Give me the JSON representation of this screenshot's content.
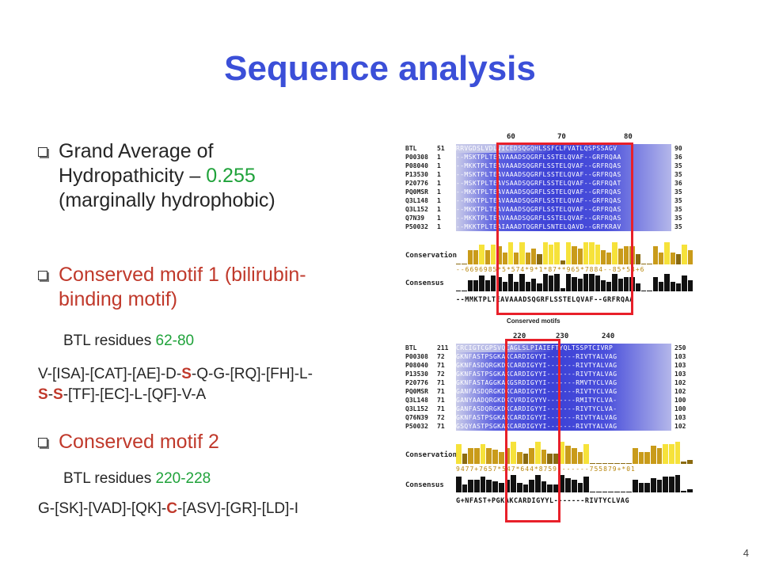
{
  "title": "Sequence analysis",
  "bullets": {
    "b1_line1": "Grand Average of",
    "b1_line2_a": "Hydropathicity – ",
    "b1_line2_b": "0.255",
    "b1_line3": "(marginally hydrophobic)",
    "b2_line1": "Conserved motif 1 (bilirubin-",
    "b2_line2": "binding motif)",
    "b2_res_a": "BTL residues ",
    "b2_res_b": "62-80",
    "b2_motif_l1_a": "V-[ISA]-[CAT]-[AE]-D-",
    "b2_motif_l1_s": "S",
    "b2_motif_l1_b": "-Q-G-[RQ]-[FH]-L-",
    "b2_motif_l2_s1": "S",
    "b2_motif_l2_dash": "-",
    "b2_motif_l2_s2": "S",
    "b2_motif_l2_b": "-[TF]-[EC]-L-[QF]-V-A",
    "b3_line1": "Conserved motif 2",
    "b3_res_a": "BTL residues ",
    "b3_res_b": "220-228",
    "b3_motif_a": "G-[SK]-[VAD]-[QK]-",
    "b3_motif_c": "C",
    "b3_motif_b": "-[ASV]-[GR]-[LD]-I"
  },
  "figure": {
    "top": {
      "ruler": [
        "60",
        "70",
        "80"
      ],
      "rows": [
        {
          "name": "BTL",
          "pos": "51",
          "seq": "RRVGDSLVDLVICEDSQGQHLSSFCLFVATLQSPSSAGV",
          "end": "90"
        },
        {
          "name": "P00308",
          "pos": "1",
          "seq": "--MSKTPLTEAVAAADSQGRFLSSTELQVAF--GRFRQAA",
          "end": "36"
        },
        {
          "name": "P08040",
          "pos": "1",
          "seq": "--MKKTPLTEAVAAADSQGRFLSSTELQVAF--GRFRQAS",
          "end": "35"
        },
        {
          "name": "P13530",
          "pos": "1",
          "seq": "--MSKTPLTEAVAAADSQGRFLSSTELQVAF--GRFRQAS",
          "end": "35"
        },
        {
          "name": "P20776",
          "pos": "1",
          "seq": "--MSKTPLTEAVSAADSQGRFLSSTELQVAF--GRFRQAT",
          "end": "36"
        },
        {
          "name": "PQ0MSR",
          "pos": "1",
          "seq": "--MKKTPLTEAVAAADSQGRFLSSTELQVAF--GRFRQAS",
          "end": "35"
        },
        {
          "name": "Q3L148",
          "pos": "1",
          "seq": "--MKKTPLTEAVAAADSQGRFLSSTELQVAF--GRFRQAS",
          "end": "35"
        },
        {
          "name": "Q3L152",
          "pos": "1",
          "seq": "--MKKTPLTEAVAAADSQGRFLSSTELQVAF--GRFRQAS",
          "end": "35"
        },
        {
          "name": "Q7N39",
          "pos": "1",
          "seq": "--MKKTPLTEAVAAADSQGRFLSSTELQVAF--GRFRQAS",
          "end": "35"
        },
        {
          "name": "P50032",
          "pos": "1",
          "seq": "--MKKTPLTEAIAAADTQGRFLSNTELQAVD--GRFKRAV",
          "end": "35"
        }
      ],
      "conservation_label": "Conservation",
      "scores": "--6696985*5*574*9*1*87**965*7884--85*54+6",
      "consensus_label": "Consensus",
      "consensus": "--MMKTPLTEAVAAADSQGRFLSSTELQVAF--GRFRQAA"
    },
    "callout": "Conserved motifs",
    "bottom": {
      "ruler": [
        "220",
        "230",
        "240"
      ],
      "rows": [
        {
          "name": "BTL",
          "pos": "211",
          "seq": "CRCIGTCGPSVQCAGLSLPIAIEFTYQLTSSPTCIVRP",
          "end": "250"
        },
        {
          "name": "P00308",
          "pos": "72",
          "seq": "GKNFASTPSGKAKCARDIGYYI-------RIVTYALVAG",
          "end": "103"
        },
        {
          "name": "P08040",
          "pos": "71",
          "seq": "GKNFASDQRGKDKCARDIGYYI-------RIVTYALVAG",
          "end": "103"
        },
        {
          "name": "P13530",
          "pos": "72",
          "seq": "GKNFASTPSGKAKCARDIGYYI-------RIVTYALVAG",
          "end": "103"
        },
        {
          "name": "P20776",
          "pos": "71",
          "seq": "GKNFASTAGGKAKGSRDIGYYI-------RMVTYCLVAG",
          "end": "102"
        },
        {
          "name": "PQ0MSR",
          "pos": "71",
          "seq": "GANFASDQRGKDKCARDIGYYI-------RIVTYCLVAG",
          "end": "102"
        },
        {
          "name": "Q3L148",
          "pos": "71",
          "seq": "GANYAADQRGKDKCVRDIGYYV-------RMITYCLVA-",
          "end": "100"
        },
        {
          "name": "Q3L152",
          "pos": "71",
          "seq": "GANFASDQRGKDKCARDIGYYI-------RIVTYCLVA-",
          "end": "100"
        },
        {
          "name": "Q76N39",
          "pos": "72",
          "seq": "GKNFASTPSGKAKCARDIGYYI-------RIVTYALVAG",
          "end": "103"
        },
        {
          "name": "P50032",
          "pos": "71",
          "seq": "GSQYASTPSGKAKCARDIGYYI-------RIVTYALVAG",
          "end": "102"
        }
      ],
      "conservation_label": "Conservation",
      "scores": "9477+7657*547*644*8759-------755879+*01",
      "consensus_label": "Consensus",
      "consensus": "G+NFAST+PGKAKCARDIGYYL-------RIVTYCLVAG"
    }
  },
  "page_number": "4",
  "colors": {
    "title": "#3b4fd8",
    "accent_red": "#c0392b",
    "accent_green": "#1fa23a",
    "box": "#e8202a"
  }
}
